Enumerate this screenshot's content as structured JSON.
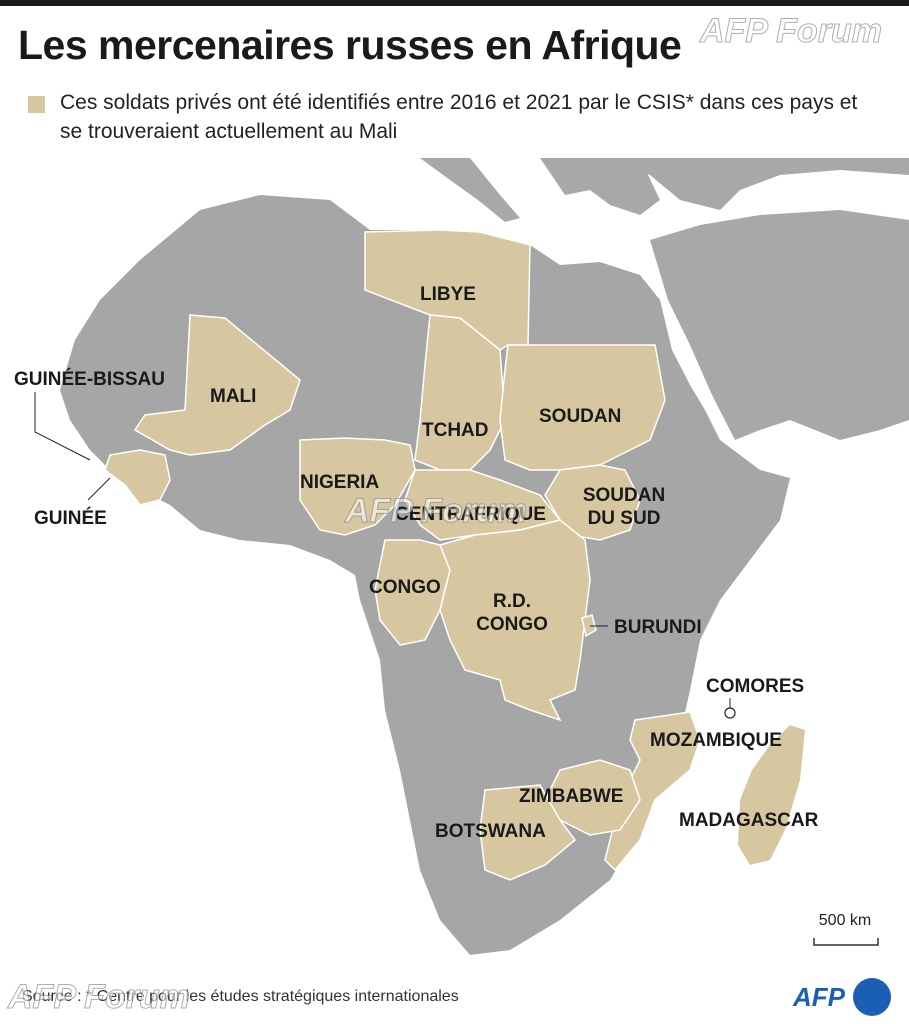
{
  "title": "Les mercenaires russes en Afrique",
  "legend": {
    "text": "Ces soldats privés ont été identifiés entre 2016 et 2021 par le CSIS* dans ces pays et se trouveraient actuellement au Mali"
  },
  "countries": {
    "libye": "LIBYE",
    "guinee_bissau": "GUINÉE-BISSAU",
    "mali": "MALI",
    "tchad": "TCHAD",
    "soudan": "SOUDAN",
    "nigeria": "NIGERIA",
    "centrafrique": "CENTRAFRIQUE",
    "soudan_du_sud_1": "SOUDAN",
    "soudan_du_sud_2": "DU SUD",
    "guinee": "GUINÉE",
    "congo": "CONGO",
    "rd_congo_1": "R.D.",
    "rd_congo_2": "CONGO",
    "burundi": "BURUNDI",
    "comores": "COMORES",
    "mozambique": "MOZAMBIQUE",
    "zimbabwe": "ZIMBABWE",
    "botswana": "BOTSWANA",
    "madagascar": "MADAGASCAR"
  },
  "scale": "500 km",
  "source": "Source : * Centre pour les études stratégiques internationales",
  "watermark": "AFP Forum",
  "logo": "AFP",
  "colors": {
    "highlight": "#d7c7a0",
    "land": "#a4a4a4",
    "sea": "#ffffff",
    "title": "#1a1a1a",
    "logo_blue": "#1a5fb4"
  }
}
